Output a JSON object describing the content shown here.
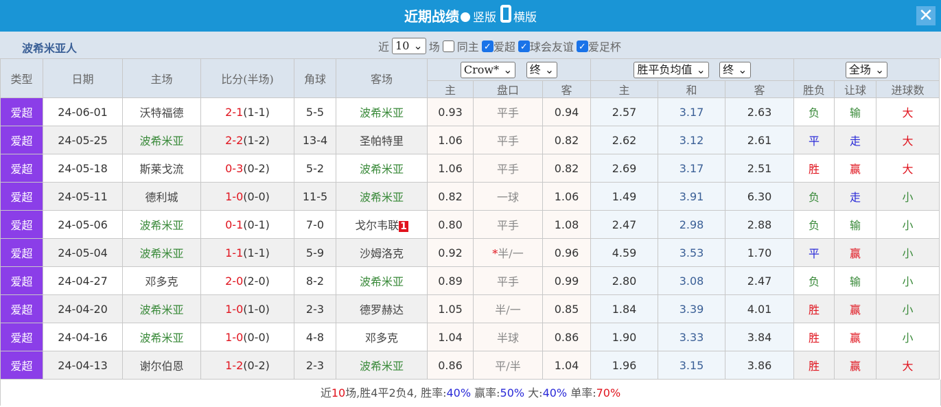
{
  "title": "近期战绩",
  "view_options": [
    "竖版",
    "横版"
  ],
  "team": "波希米亚人",
  "filter": {
    "prefix": "近",
    "count": "10",
    "suffix": "场",
    "checks": [
      {
        "label": "同主",
        "checked": false
      },
      {
        "label": "爱超",
        "checked": true
      },
      {
        "label": "球会友谊",
        "checked": true
      },
      {
        "label": "爱足杯",
        "checked": true
      }
    ]
  },
  "headers": {
    "type": "类型",
    "date": "日期",
    "home": "主场",
    "score": "比分(半场)",
    "corner": "角球",
    "away": "客场",
    "asia_company": "Crow*",
    "asia_time": "终",
    "euro_type": "胜平负均值",
    "euro_time": "终",
    "period": "全场",
    "sub": [
      "主",
      "盘口",
      "客",
      "主",
      "和",
      "客",
      "胜负",
      "让球",
      "进球数"
    ]
  },
  "colors": {
    "title_bar": "#1a95d6",
    "type_badge": "#8b3ee8",
    "win": "#e0141e",
    "draw": "#2a2ad8",
    "loss": "#3a8a3a"
  },
  "rows": [
    {
      "type": "爱超",
      "date": "24-06-01",
      "home": "沃特福德",
      "score": "2-1",
      "half": "(1-1)",
      "corner": "5-5",
      "away": "波希米亚",
      "o1": "0.93",
      "hand": "平手",
      "o2": "0.94",
      "e1": "2.57",
      "e2": "3.17",
      "e3": "2.63",
      "res": "负",
      "ah": "输",
      "ou": "大",
      "side": "away"
    },
    {
      "type": "爱超",
      "date": "24-05-25",
      "home": "波希米亚",
      "score": "2-2",
      "half": "(1-2)",
      "corner": "13-4",
      "away": "圣帕特里",
      "o1": "1.06",
      "hand": "平手",
      "o2": "0.82",
      "e1": "2.62",
      "e2": "3.12",
      "e3": "2.61",
      "res": "平",
      "ah": "走",
      "ou": "大",
      "side": "home"
    },
    {
      "type": "爱超",
      "date": "24-05-18",
      "home": "斯莱戈流",
      "score": "0-3",
      "half": "(0-2)",
      "corner": "5-2",
      "away": "波希米亚",
      "o1": "1.06",
      "hand": "平手",
      "o2": "0.82",
      "e1": "2.69",
      "e2": "3.17",
      "e3": "2.51",
      "res": "胜",
      "ah": "赢",
      "ou": "大",
      "side": "away"
    },
    {
      "type": "爱超",
      "date": "24-05-11",
      "home": "德利城",
      "score": "1-0",
      "half": "(0-0)",
      "corner": "11-5",
      "away": "波希米亚",
      "o1": "0.82",
      "hand": "一球",
      "o2": "1.06",
      "e1": "1.49",
      "e2": "3.91",
      "e3": "6.30",
      "res": "负",
      "ah": "走",
      "ou": "小",
      "side": "away"
    },
    {
      "type": "爱超",
      "date": "24-05-06",
      "home": "波希米亚",
      "score": "0-1",
      "half": "(0-1)",
      "corner": "7-0",
      "away": "戈尔韦联",
      "red": "1",
      "o1": "0.80",
      "hand": "平手",
      "o2": "1.08",
      "e1": "2.47",
      "e2": "2.98",
      "e3": "2.88",
      "res": "负",
      "ah": "输",
      "ou": "小",
      "side": "home"
    },
    {
      "type": "爱超",
      "date": "24-05-04",
      "home": "波希米亚",
      "score": "1-1",
      "half": "(1-1)",
      "corner": "5-9",
      "away": "沙姆洛克",
      "o1": "0.92",
      "star": "*",
      "hand": "半/一",
      "o2": "0.96",
      "e1": "4.59",
      "e2": "3.53",
      "e3": "1.70",
      "res": "平",
      "ah": "赢",
      "ou": "小",
      "side": "home"
    },
    {
      "type": "爱超",
      "date": "24-04-27",
      "home": "邓多克",
      "score": "2-0",
      "half": "(2-0)",
      "corner": "8-2",
      "away": "波希米亚",
      "o1": "0.89",
      "hand": "平手",
      "o2": "0.99",
      "e1": "2.80",
      "e2": "3.08",
      "e3": "2.47",
      "res": "负",
      "ah": "输",
      "ou": "小",
      "side": "away"
    },
    {
      "type": "爱超",
      "date": "24-04-20",
      "home": "波希米亚",
      "score": "1-0",
      "half": "(1-0)",
      "corner": "2-3",
      "away": "德罗赫达",
      "o1": "1.05",
      "hand": "半/一",
      "o2": "0.85",
      "e1": "1.84",
      "e2": "3.39",
      "e3": "4.01",
      "res": "胜",
      "ah": "赢",
      "ou": "小",
      "side": "home"
    },
    {
      "type": "爱超",
      "date": "24-04-16",
      "home": "波希米亚",
      "score": "1-0",
      "half": "(0-0)",
      "corner": "4-8",
      "away": "邓多克",
      "o1": "1.04",
      "hand": "半球",
      "o2": "0.86",
      "e1": "1.90",
      "e2": "3.33",
      "e3": "3.84",
      "res": "胜",
      "ah": "赢",
      "ou": "小",
      "side": "home"
    },
    {
      "type": "爱超",
      "date": "24-04-13",
      "home": "谢尔伯恩",
      "score": "1-2",
      "half": "(0-2)",
      "corner": "2-3",
      "away": "波希米亚",
      "o1": "0.86",
      "hand": "平/半",
      "o2": "1.04",
      "e1": "1.96",
      "e2": "3.15",
      "e3": "3.86",
      "res": "胜",
      "ah": "赢",
      "ou": "大",
      "side": "away"
    }
  ],
  "summary": {
    "a": "近",
    "n": "10",
    "b": "场,胜",
    "w": "4",
    "c": "平",
    "d": "2",
    "e": "负",
    "l": "4",
    "f": ", 胜率:",
    "wr": "40%",
    "g": " 赢率:",
    "ar": "50%",
    "h": " 大:",
    "br": "40%",
    "i": " 单率:",
    "sr": "70%"
  }
}
